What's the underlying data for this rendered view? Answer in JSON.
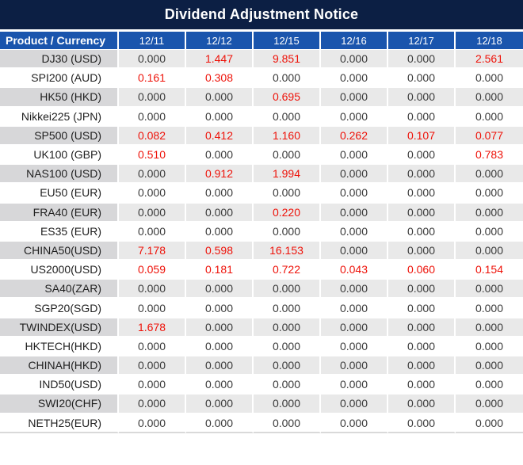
{
  "title": "Dividend Adjustment Notice",
  "chart_data": {
    "type": "table",
    "corner_header": "Product / Currency",
    "columns": [
      "12/11",
      "12/12",
      "12/15",
      "12/16",
      "12/17",
      "12/18"
    ],
    "rows": [
      {
        "product": "DJ30 (USD)",
        "values": [
          "0.000",
          "1.447",
          "9.851",
          "0.000",
          "0.000",
          "2.561"
        ]
      },
      {
        "product": "SPI200 (AUD)",
        "values": [
          "0.161",
          "0.308",
          "0.000",
          "0.000",
          "0.000",
          "0.000"
        ]
      },
      {
        "product": "HK50 (HKD)",
        "values": [
          "0.000",
          "0.000",
          "0.695",
          "0.000",
          "0.000",
          "0.000"
        ]
      },
      {
        "product": "Nikkei225 (JPN)",
        "values": [
          "0.000",
          "0.000",
          "0.000",
          "0.000",
          "0.000",
          "0.000"
        ]
      },
      {
        "product": "SP500 (USD)",
        "values": [
          "0.082",
          "0.412",
          "1.160",
          "0.262",
          "0.107",
          "0.077"
        ]
      },
      {
        "product": "UK100 (GBP)",
        "values": [
          "0.510",
          "0.000",
          "0.000",
          "0.000",
          "0.000",
          "0.783"
        ]
      },
      {
        "product": "NAS100 (USD)",
        "values": [
          "0.000",
          "0.912",
          "1.994",
          "0.000",
          "0.000",
          "0.000"
        ]
      },
      {
        "product": "EU50 (EUR)",
        "values": [
          "0.000",
          "0.000",
          "0.000",
          "0.000",
          "0.000",
          "0.000"
        ]
      },
      {
        "product": "FRA40 (EUR)",
        "values": [
          "0.000",
          "0.000",
          "0.220",
          "0.000",
          "0.000",
          "0.000"
        ]
      },
      {
        "product": "ES35 (EUR)",
        "values": [
          "0.000",
          "0.000",
          "0.000",
          "0.000",
          "0.000",
          "0.000"
        ]
      },
      {
        "product": "CHINA50(USD)",
        "values": [
          "7.178",
          "0.598",
          "16.153",
          "0.000",
          "0.000",
          "0.000"
        ]
      },
      {
        "product": "US2000(USD)",
        "values": [
          "0.059",
          "0.181",
          "0.722",
          "0.043",
          "0.060",
          "0.154"
        ]
      },
      {
        "product": "SA40(ZAR)",
        "values": [
          "0.000",
          "0.000",
          "0.000",
          "0.000",
          "0.000",
          "0.000"
        ]
      },
      {
        "product": "SGP20(SGD)",
        "values": [
          "0.000",
          "0.000",
          "0.000",
          "0.000",
          "0.000",
          "0.000"
        ]
      },
      {
        "product": "TWINDEX(USD)",
        "values": [
          "1.678",
          "0.000",
          "0.000",
          "0.000",
          "0.000",
          "0.000"
        ]
      },
      {
        "product": "HKTECH(HKD)",
        "values": [
          "0.000",
          "0.000",
          "0.000",
          "0.000",
          "0.000",
          "0.000"
        ]
      },
      {
        "product": "CHINAH(HKD)",
        "values": [
          "0.000",
          "0.000",
          "0.000",
          "0.000",
          "0.000",
          "0.000"
        ]
      },
      {
        "product": "IND50(USD)",
        "values": [
          "0.000",
          "0.000",
          "0.000",
          "0.000",
          "0.000",
          "0.000"
        ]
      },
      {
        "product": "SWI20(CHF)",
        "values": [
          "0.000",
          "0.000",
          "0.000",
          "0.000",
          "0.000",
          "0.000"
        ]
      },
      {
        "product": "NETH25(EUR)",
        "values": [
          "0.000",
          "0.000",
          "0.000",
          "0.000",
          "0.000",
          "0.000"
        ]
      }
    ],
    "zero_value": "0.000",
    "legend_note_colors": {
      "zero_text": "#3a3a3a",
      "nonzero_text": "#ee1209"
    }
  },
  "colors": {
    "title_bg": "#0c1f44",
    "header_bg": "#1a55ad",
    "row_gray_label": "#d7d7d9",
    "row_gray": "#e9e9e9",
    "text_dark": "#3a3a3a",
    "value_red": "#ee1209"
  }
}
